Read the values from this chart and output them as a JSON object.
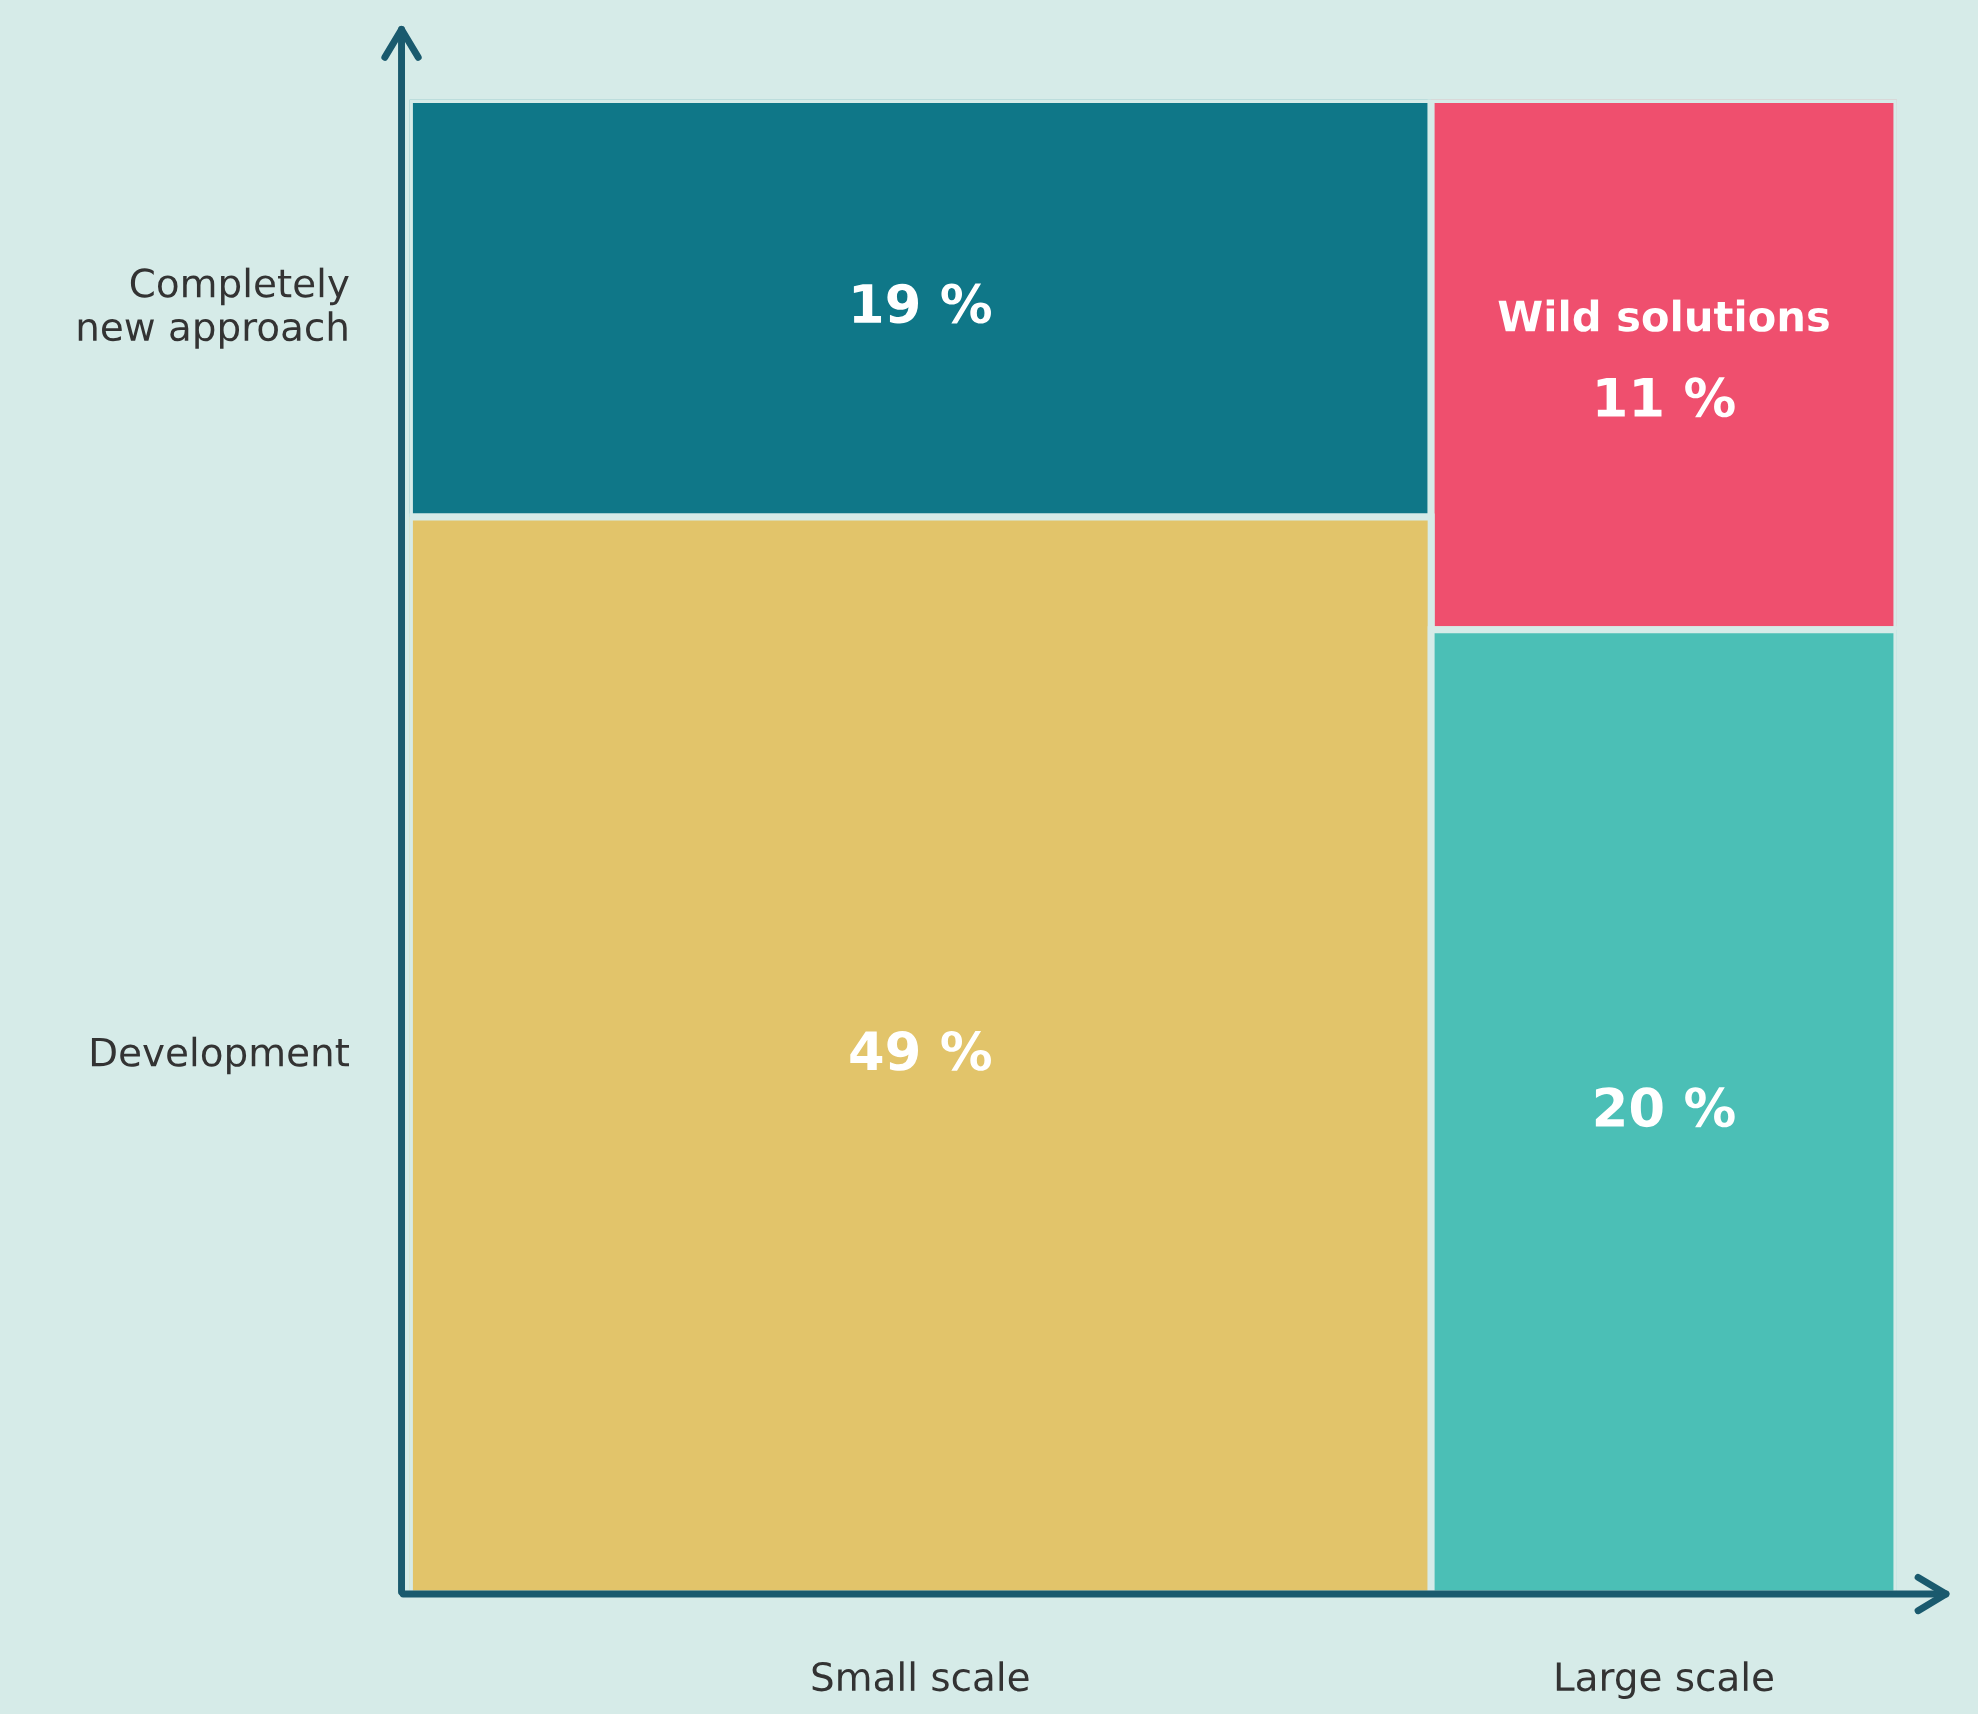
{
  "chart_data": {
    "type": "other",
    "categories": [
      null,
      "Wild solutions",
      null,
      null
    ],
    "values": [
      19,
      11,
      49,
      20
    ],
    "value_labels": [
      "19 %",
      "11 %",
      "49 %",
      "20 %"
    ],
    "colors": [
      "#0f7788",
      "#ef4f6e",
      "#e2c46a",
      "#4bbfb6"
    ],
    "annotations": [
      "Small scale",
      "Large scale",
      "Completely\nnew approach",
      "Development"
    ]
  }
}
